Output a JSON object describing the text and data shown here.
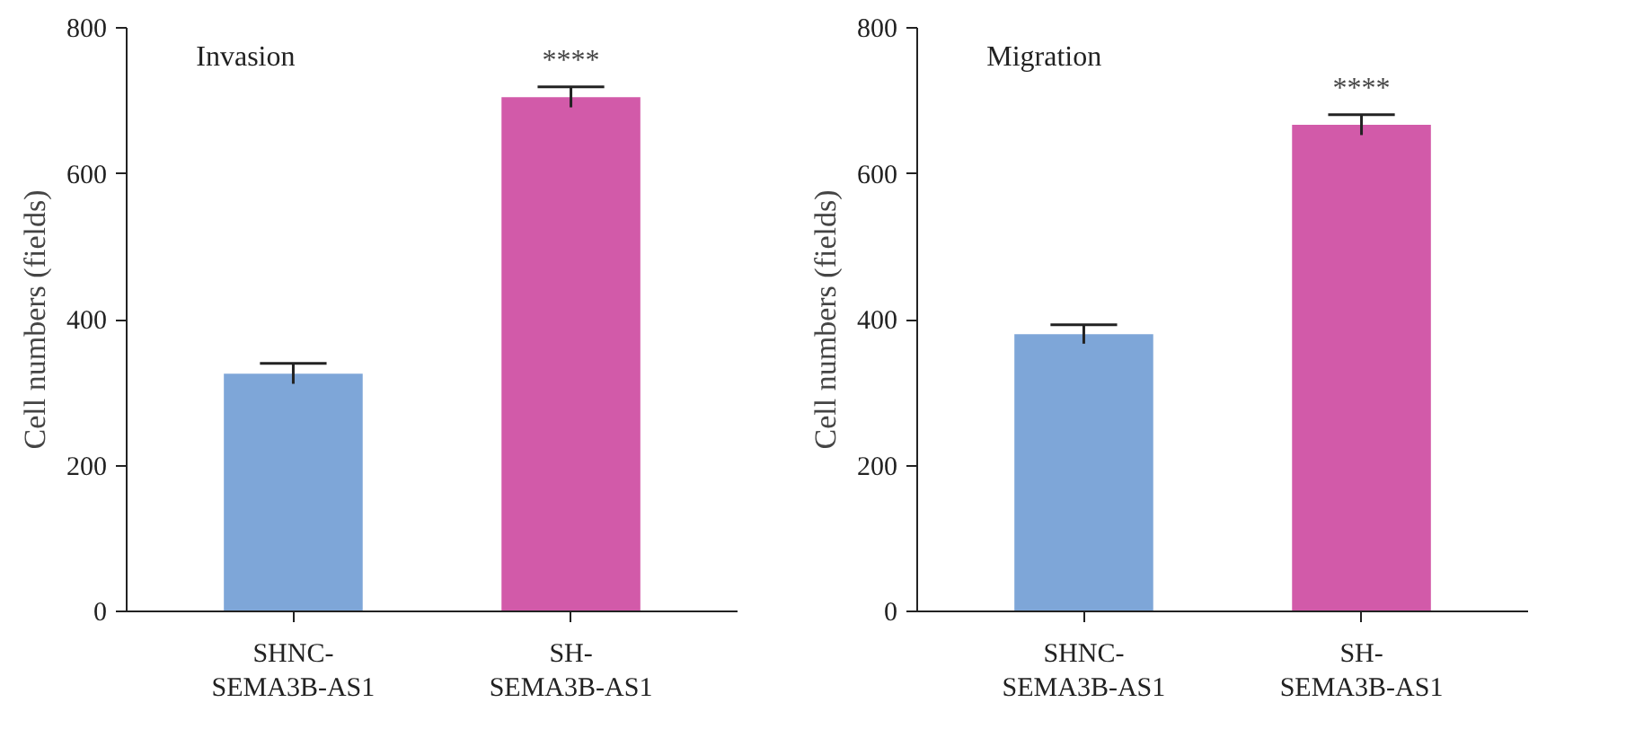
{
  "chart_data": [
    {
      "type": "bar",
      "title": "Invasion",
      "ylabel": "Cell numbers (fields)",
      "categories": [
        "SHNC-\nSEMA3B-AS1",
        "SH-\nSEMA3B-AS1"
      ],
      "values": [
        326,
        705
      ],
      "colors": [
        "#7ea6d8",
        "#d25aa9"
      ],
      "errors": [
        14,
        14
      ],
      "ylim": [
        0,
        800
      ],
      "yticks": [
        0,
        200,
        400,
        600,
        800
      ],
      "grid": false,
      "annotations": [
        {
          "text": "****",
          "x": "SH-\nSEMA3B-AS1",
          "y": 719
        }
      ]
    },
    {
      "type": "bar",
      "title": "Migration",
      "ylabel": "Cell numbers (fields)",
      "categories": [
        "SHNC-\nSEMA3B-AS1",
        "SH-\nSEMA3B-AS1"
      ],
      "values": [
        380,
        667
      ],
      "colors": [
        "#7ea6d8",
        "#d25aa9"
      ],
      "errors": [
        13,
        14
      ],
      "ylim": [
        0,
        800
      ],
      "yticks": [
        0,
        200,
        400,
        600,
        800
      ],
      "grid": false,
      "annotations": [
        {
          "text": "****",
          "x": "SH-\nSEMA3B-AS1",
          "y": 681
        }
      ]
    }
  ]
}
